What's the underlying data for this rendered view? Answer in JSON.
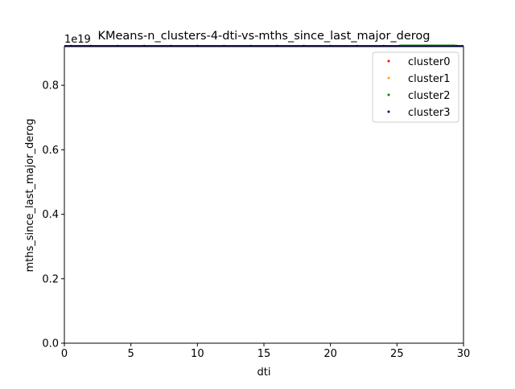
{
  "chart_data": {
    "type": "scatter",
    "title": "KMeans-n_clusters-4-dti-vs-mths_since_last_major_derog",
    "xlabel": "dti",
    "ylabel": "mths_since_last_major_derog",
    "y_offset_label": "1e19",
    "xlim": [
      0,
      30
    ],
    "ylim": [
      0,
      0.92
    ],
    "x_ticks": [
      0,
      5,
      10,
      15,
      20,
      25,
      30
    ],
    "x_tick_labels": [
      "0",
      "5",
      "10",
      "15",
      "20",
      "25",
      "30"
    ],
    "y_ticks": [
      0.0,
      0.2,
      0.4,
      0.6,
      0.8
    ],
    "y_tick_labels": [
      "0.0",
      "0.2",
      "0.4",
      "0.6",
      "0.8"
    ],
    "grid": false,
    "legend_position": "top-right",
    "series": [
      {
        "name": "cluster0",
        "color": "#ff0000",
        "points": [
          [
            25.5,
            0.9223
          ],
          [
            27.0,
            0.9223
          ],
          [
            28.4,
            0.9223
          ]
        ]
      },
      {
        "name": "cluster1",
        "color": "#ffa500",
        "points": [
          [
            26.0,
            0.9223
          ],
          [
            27.4,
            0.9223
          ],
          [
            28.9,
            0.9223
          ]
        ]
      },
      {
        "name": "cluster2",
        "color": "#008000",
        "points": [
          [
            25.2,
            0.9223
          ],
          [
            25.8,
            0.9223
          ],
          [
            26.5,
            0.9223
          ],
          [
            27.2,
            0.9223
          ],
          [
            27.8,
            0.9223
          ],
          [
            28.6,
            0.9223
          ],
          [
            29.2,
            0.9223
          ]
        ]
      },
      {
        "name": "cluster3",
        "color": "#000080",
        "points": [
          [
            0.5,
            0.9223
          ],
          [
            2,
            0.9223
          ],
          [
            4,
            0.9223
          ],
          [
            6,
            0.9223
          ],
          [
            8,
            0.9223
          ],
          [
            10,
            0.9223
          ],
          [
            12,
            0.9223
          ],
          [
            14,
            0.9223
          ],
          [
            16,
            0.9223
          ],
          [
            18,
            0.9223
          ],
          [
            20,
            0.9223
          ],
          [
            22,
            0.9223
          ],
          [
            24,
            0.9223
          ],
          [
            26.5,
            0.9223
          ],
          [
            29.5,
            0.9223
          ]
        ]
      }
    ]
  }
}
